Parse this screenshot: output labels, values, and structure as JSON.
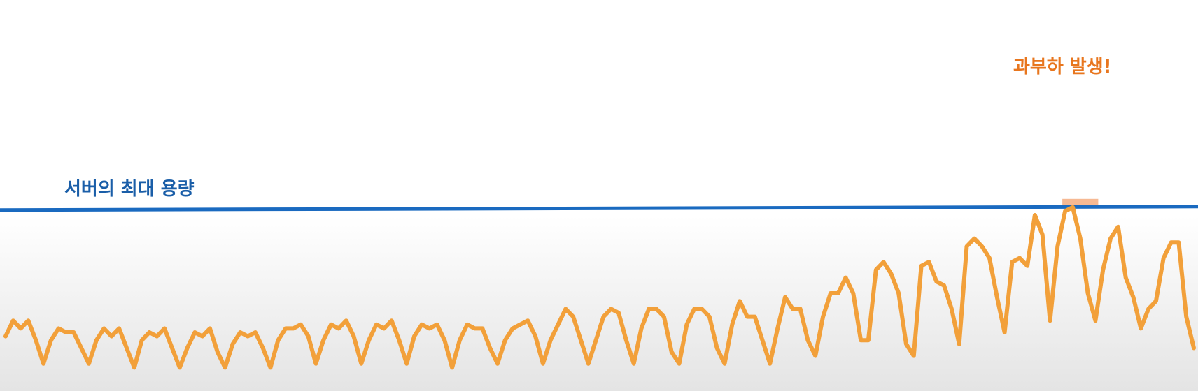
{
  "chart_data": {
    "type": "line",
    "annotations": {
      "capacity_label": "서버의 최대 용량",
      "overload_label": "과부하 발생!"
    },
    "ylim": [
      0,
      100
    ],
    "capacity": 47,
    "series": [
      {
        "values": [
          14,
          18,
          16,
          18,
          13,
          7,
          13,
          16,
          15,
          15,
          11,
          7,
          13,
          16,
          14,
          16,
          11,
          6,
          13,
          15,
          14,
          16,
          11,
          6,
          11,
          15,
          14,
          16,
          10,
          6,
          12,
          15,
          14,
          15,
          11,
          6,
          13,
          16,
          16,
          17,
          14,
          7,
          13,
          17,
          16,
          18,
          14,
          7,
          13,
          17,
          16,
          18,
          13,
          7,
          14,
          17,
          16,
          17,
          13,
          6,
          13,
          17,
          16,
          16,
          11,
          7,
          13,
          16,
          17,
          18,
          14,
          7,
          13,
          17,
          21,
          19,
          13,
          7,
          13,
          19,
          21,
          20,
          13,
          7,
          16,
          21,
          21,
          19,
          10,
          7,
          17,
          21,
          21,
          19,
          11,
          7,
          17,
          23,
          19,
          19,
          13,
          7,
          16,
          24,
          21,
          21,
          13,
          9,
          19,
          25,
          25,
          29,
          25,
          13,
          13,
          31,
          33,
          30,
          25,
          12,
          9,
          32,
          33,
          28,
          27,
          21,
          12,
          37,
          39,
          37,
          34,
          24,
          15,
          33,
          34,
          32,
          45,
          40,
          18,
          37,
          46,
          47,
          39,
          25,
          18,
          31,
          39,
          42,
          29,
          24,
          16,
          21,
          23,
          34,
          38,
          38,
          19,
          11
        ]
      }
    ],
    "overload_regions": [
      [
        127,
        130
      ],
      [
        140,
        144
      ]
    ],
    "colors": {
      "line": "#f2a03a",
      "capacity": "#1a6ac0",
      "highlight": "#f08a4b",
      "capacity_text": "#1a5ea8",
      "overload_text": "#e8761e"
    }
  }
}
